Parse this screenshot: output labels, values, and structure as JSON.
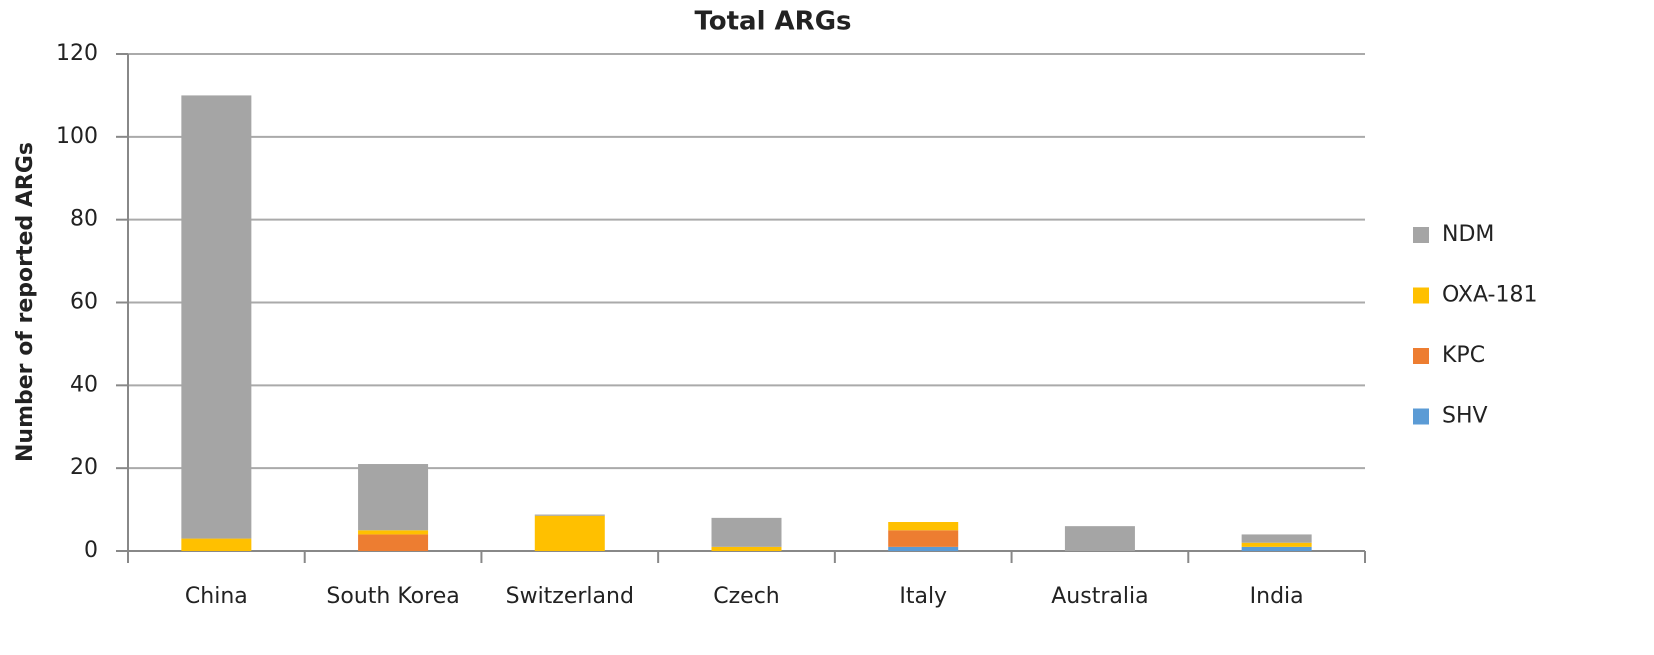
{
  "chart_data": {
    "type": "stacked_bar",
    "title": "Total ARGs",
    "y_label": "Number of reported ARGs",
    "categories": [
      "China",
      "South Korea",
      "Switzerland",
      "Czech",
      "Italy",
      "Australia",
      "India"
    ],
    "series": [
      {
        "name": "SHV",
        "color": "#5b9bd5",
        "values": [
          0,
          0,
          0,
          0,
          1,
          0,
          1
        ]
      },
      {
        "name": "KPC",
        "color": "#ed7d31",
        "values": [
          0,
          4,
          0,
          0,
          4,
          0,
          0
        ]
      },
      {
        "name": "OXA-181",
        "color": "#ffc000",
        "values": [
          3,
          1,
          8.5,
          1,
          2,
          0,
          1
        ]
      },
      {
        "name": "NDM",
        "color": "#a5a5a5",
        "values": [
          107,
          16,
          0.3,
          7,
          0,
          6,
          2
        ]
      }
    ],
    "ylim": [
      0,
      120
    ],
    "yticks": [
      0,
      20,
      40,
      60,
      80,
      100,
      120
    ],
    "grid": true,
    "legend": "right"
  }
}
